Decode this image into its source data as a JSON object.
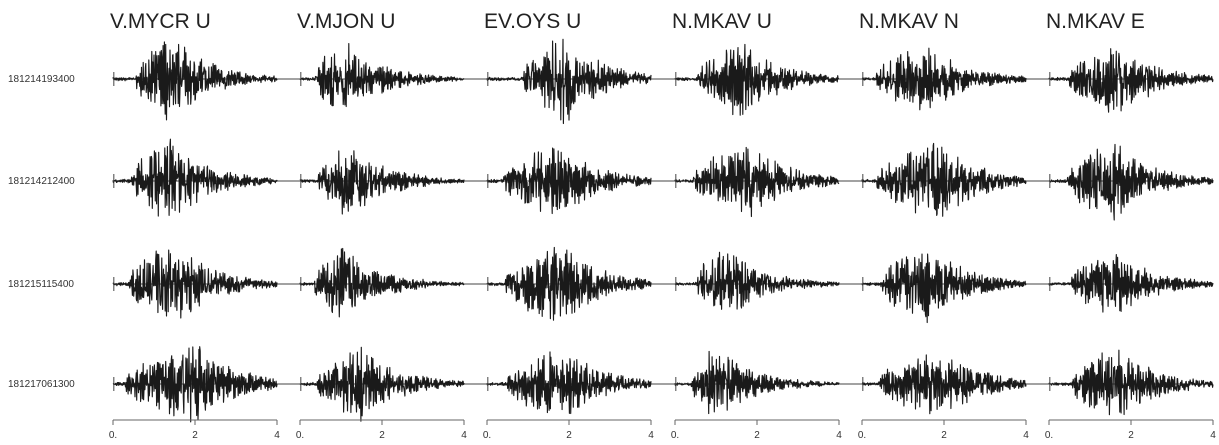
{
  "chart_data": {
    "type": "line",
    "xlim": [
      0,
      4
    ],
    "xticks": [
      0,
      2,
      4
    ],
    "xtick_labels": [
      "0.",
      "2",
      "4"
    ],
    "grid": false,
    "stations": [
      "V.MYCR U",
      "V.MJON U",
      "EV.OYS U",
      "N.MKAV U",
      "N.MKAV N",
      "N.MKAV E"
    ],
    "events": [
      "181214193400",
      "181214212400",
      "181215115400",
      "181217061300"
    ]
  },
  "colors": {
    "trace": "#1a1a1a",
    "baseline": "#444444",
    "axis": "#666666"
  }
}
